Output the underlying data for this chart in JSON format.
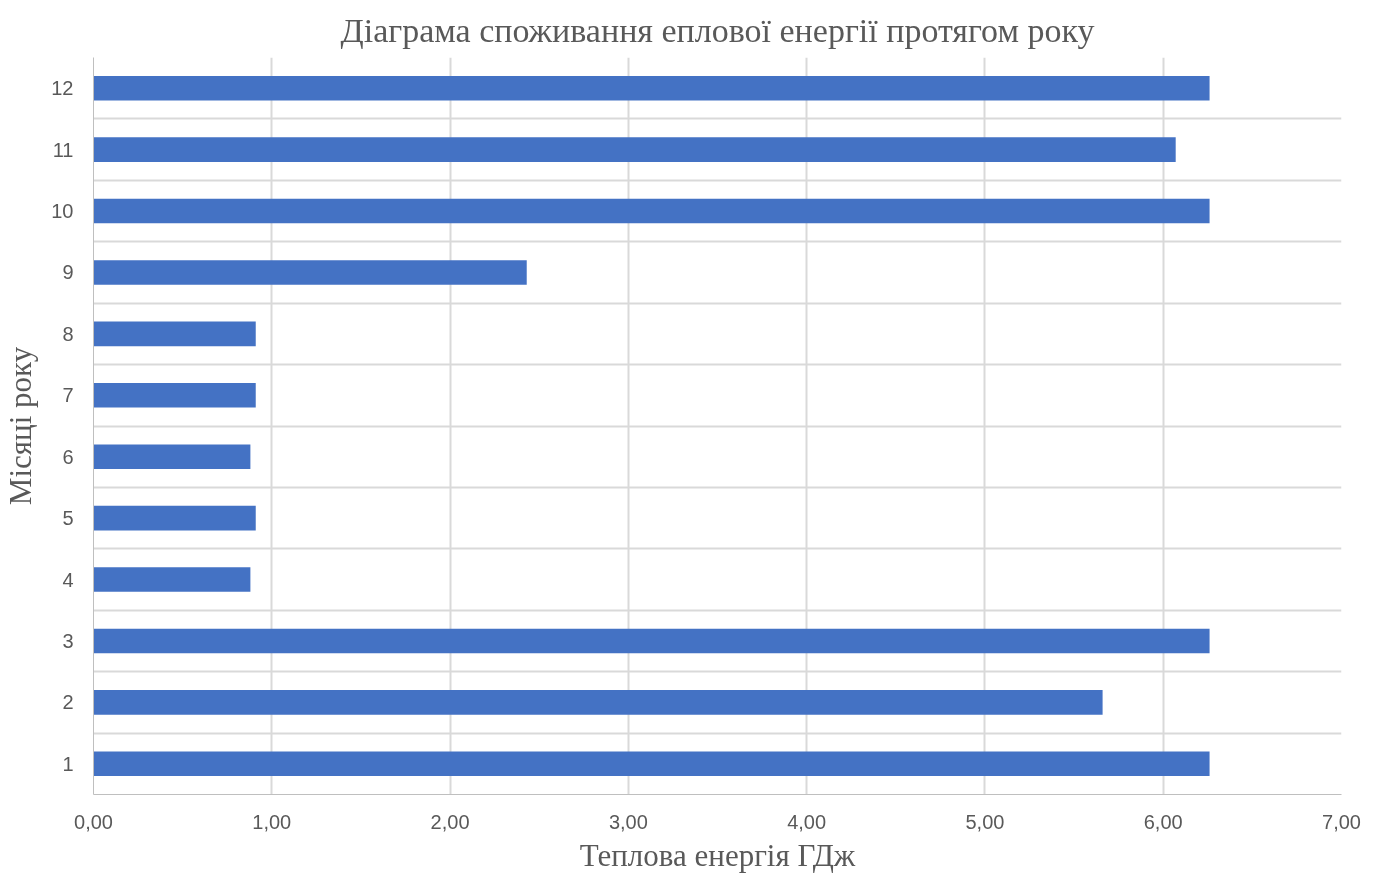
{
  "chart_data": {
    "type": "bar",
    "orientation": "horizontal",
    "title": "Діаграма споживання еплової енергії протягом року",
    "xlabel": "Теплова енергія ГДж",
    "ylabel": "Місяці року",
    "categories": [
      "12",
      "11",
      "10",
      "9",
      "8",
      "7",
      "6",
      "5",
      "4",
      "3",
      "2",
      "1"
    ],
    "values": [
      6.26,
      6.07,
      6.26,
      2.43,
      0.91,
      0.91,
      0.88,
      0.91,
      0.88,
      6.26,
      5.66,
      6.26
    ],
    "color": "#4472c4",
    "xlim": [
      0,
      7
    ],
    "xticks": [
      {
        "value": 0,
        "label": "0,00"
      },
      {
        "value": 1,
        "label": "1,00"
      },
      {
        "value": 2,
        "label": "2,00"
      },
      {
        "value": 3,
        "label": "3,00"
      },
      {
        "value": 4,
        "label": "4,00"
      },
      {
        "value": 5,
        "label": "5,00"
      },
      {
        "value": 6,
        "label": "6,00"
      },
      {
        "value": 7,
        "label": "7,00"
      }
    ],
    "grid": true
  }
}
